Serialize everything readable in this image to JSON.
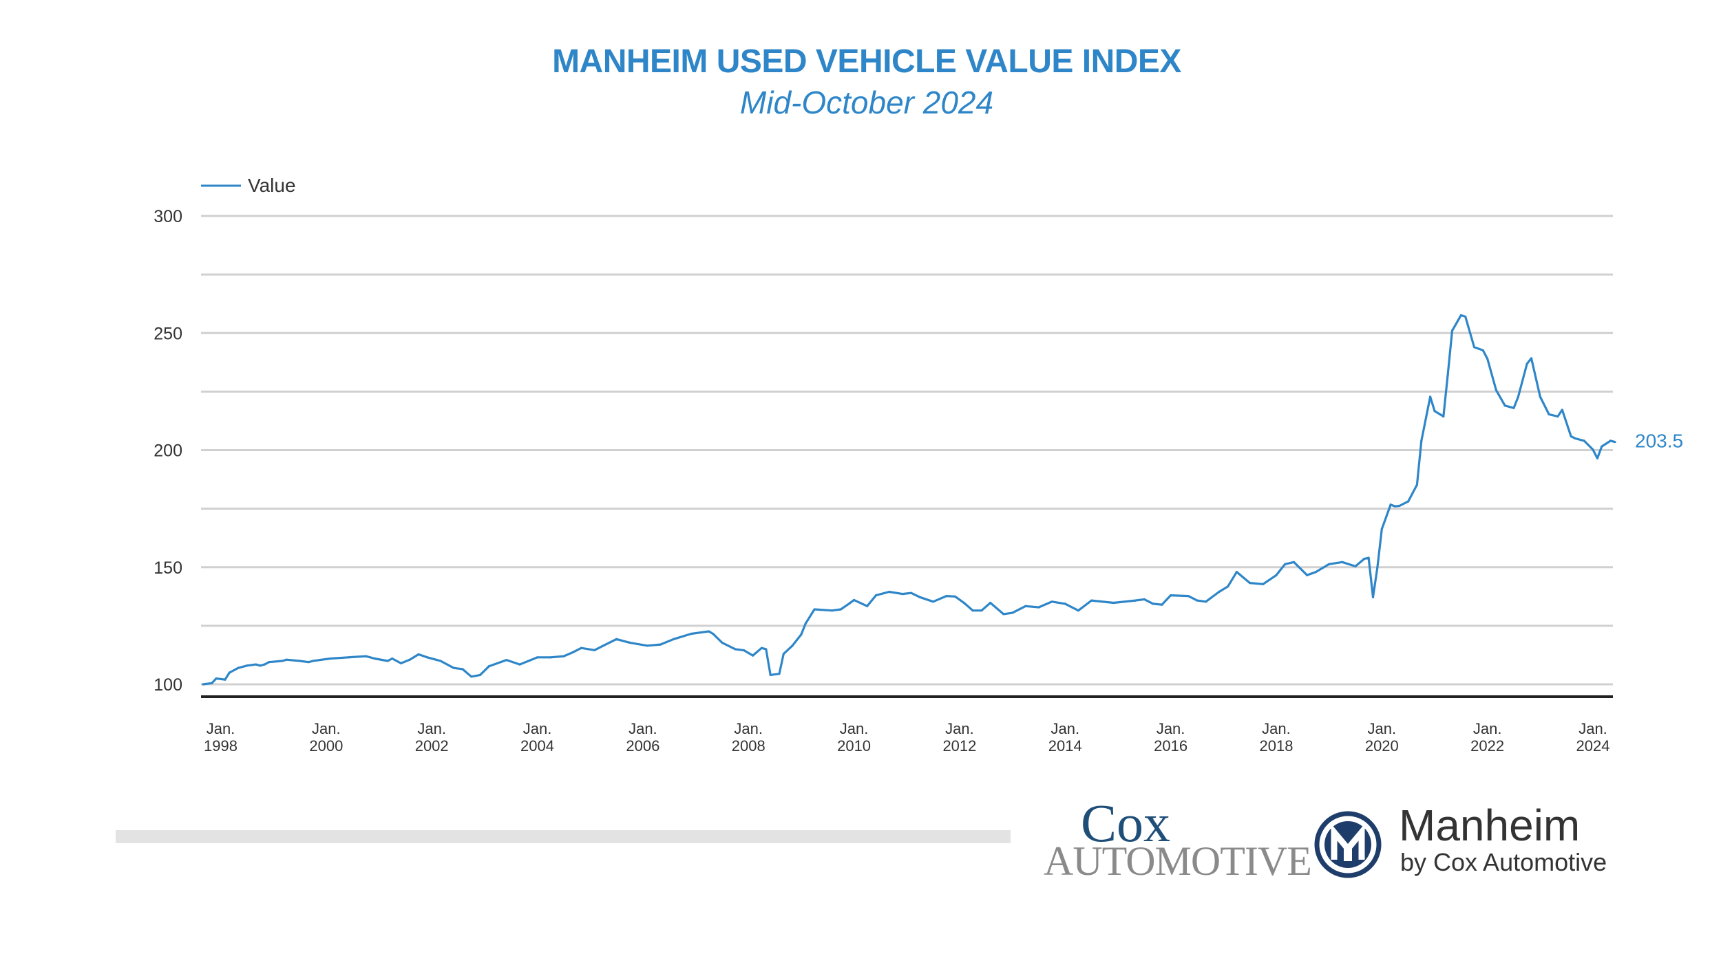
{
  "chart_data": {
    "type": "line",
    "title": "MANHEIM USED VEHICLE VALUE INDEX",
    "subtitle": "Mid-October 2024",
    "legend": {
      "position": "top-left",
      "entries": [
        "Value"
      ]
    },
    "ylim": [
      100,
      300
    ],
    "yticks": [
      100,
      150,
      200,
      250,
      300
    ],
    "grid": true,
    "xtick_labels": [
      {
        "date": "1998-01",
        "line1": "Jan.",
        "line2": "1998"
      },
      {
        "date": "2000-01",
        "line1": "Jan.",
        "line2": "2000"
      },
      {
        "date": "2002-01",
        "line1": "Jan.",
        "line2": "2002"
      },
      {
        "date": "2004-01",
        "line1": "Jan.",
        "line2": "2004"
      },
      {
        "date": "2006-01",
        "line1": "Jan.",
        "line2": "2006"
      },
      {
        "date": "2008-01",
        "line1": "Jan.",
        "line2": "2008"
      },
      {
        "date": "2010-01",
        "line1": "Jan.",
        "line2": "2010"
      },
      {
        "date": "2012-01",
        "line1": "Jan.",
        "line2": "2012"
      },
      {
        "date": "2014-01",
        "line1": "Jan.",
        "line2": "2014"
      },
      {
        "date": "2016-01",
        "line1": "Jan.",
        "line2": "2016"
      },
      {
        "date": "2018-01",
        "line1": "Jan.",
        "line2": "2018"
      },
      {
        "date": "2020-01",
        "line1": "Jan.",
        "line2": "2020"
      },
      {
        "date": "2022-01",
        "line1": "Jan.",
        "line2": "2022"
      },
      {
        "date": "2024-01",
        "line1": "Jan.",
        "line2": "2024"
      }
    ],
    "last_value_label": "203.5",
    "series": [
      {
        "name": "Value",
        "color": "#2e86c8",
        "points": [
          [
            "1997-09",
            100
          ],
          [
            "1997-11",
            100.5
          ],
          [
            "1997-12",
            102.5
          ],
          [
            "1998-02",
            102
          ],
          [
            "1998-03",
            105
          ],
          [
            "1998-05",
            107
          ],
          [
            "1998-07",
            108
          ],
          [
            "1998-09",
            108.5
          ],
          [
            "1998-10",
            108
          ],
          [
            "1998-11",
            108.5
          ],
          [
            "1998-12",
            109.5
          ],
          [
            "1999-03",
            110
          ],
          [
            "1999-04",
            110.5
          ],
          [
            "1999-07",
            110
          ],
          [
            "1999-09",
            109.5
          ],
          [
            "1999-10",
            110
          ],
          [
            "1999-12",
            110.5
          ],
          [
            "2000-02",
            111
          ],
          [
            "2000-06",
            111.5
          ],
          [
            "2000-10",
            112
          ],
          [
            "2000-12",
            111
          ],
          [
            "2001-03",
            110
          ],
          [
            "2001-04",
            111
          ],
          [
            "2001-06",
            109
          ],
          [
            "2001-08",
            110.5
          ],
          [
            "2001-10",
            112.8
          ],
          [
            "2001-12",
            111.5
          ],
          [
            "2002-03",
            110
          ],
          [
            "2002-06",
            107
          ],
          [
            "2002-08",
            106.5
          ],
          [
            "2002-10",
            103.3
          ],
          [
            "2002-12",
            104
          ],
          [
            "2003-02",
            107.7
          ],
          [
            "2003-06",
            110.4
          ],
          [
            "2003-09",
            108.5
          ],
          [
            "2003-11",
            110
          ],
          [
            "2004-01",
            111.5
          ],
          [
            "2004-04",
            111.5
          ],
          [
            "2004-07",
            112
          ],
          [
            "2004-09",
            113.6
          ],
          [
            "2004-11",
            115.5
          ],
          [
            "2005-02",
            114.6
          ],
          [
            "2005-04",
            116.5
          ],
          [
            "2005-07",
            119.3
          ],
          [
            "2005-10",
            117.8
          ],
          [
            "2006-02",
            116.5
          ],
          [
            "2006-05",
            117
          ],
          [
            "2006-08",
            119.3
          ],
          [
            "2006-12",
            121.6
          ],
          [
            "2007-04",
            122.6
          ],
          [
            "2007-05",
            121.5
          ],
          [
            "2007-07",
            117.8
          ],
          [
            "2007-10",
            115
          ],
          [
            "2007-12",
            114.5
          ],
          [
            "2008-02",
            112.3
          ],
          [
            "2008-04",
            115.5
          ],
          [
            "2008-05",
            115
          ],
          [
            "2008-06",
            104
          ],
          [
            "2008-08",
            104.5
          ],
          [
            "2008-09",
            113
          ],
          [
            "2008-11",
            116.5
          ],
          [
            "2009-01",
            121.3
          ],
          [
            "2009-02",
            126
          ],
          [
            "2009-04",
            132
          ],
          [
            "2009-08",
            131.5
          ],
          [
            "2009-10",
            132
          ],
          [
            "2009-12",
            134.6
          ],
          [
            "2010-01",
            136
          ],
          [
            "2010-04",
            133.4
          ],
          [
            "2010-06",
            138
          ],
          [
            "2010-09",
            139.5
          ],
          [
            "2010-12",
            138.6
          ],
          [
            "2011-02",
            139
          ],
          [
            "2011-04",
            137.2
          ],
          [
            "2011-07",
            135.3
          ],
          [
            "2011-10",
            137.7
          ],
          [
            "2011-12",
            137.5
          ],
          [
            "2012-02",
            134.8
          ],
          [
            "2012-04",
            131.5
          ],
          [
            "2012-06",
            131.5
          ],
          [
            "2012-08",
            134.8
          ],
          [
            "2012-11",
            130
          ],
          [
            "2013-01",
            130.5
          ],
          [
            "2013-04",
            133.4
          ],
          [
            "2013-07",
            132.9
          ],
          [
            "2013-10",
            135.3
          ],
          [
            "2014-01",
            134.4
          ],
          [
            "2014-04",
            131.5
          ],
          [
            "2014-07",
            135.8
          ],
          [
            "2014-12",
            134.8
          ],
          [
            "2015-05",
            135.8
          ],
          [
            "2015-07",
            136.3
          ],
          [
            "2015-09",
            134.4
          ],
          [
            "2015-11",
            134
          ],
          [
            "2016-01",
            138
          ],
          [
            "2016-05",
            137.7
          ],
          [
            "2016-07",
            135.8
          ],
          [
            "2016-09",
            135.3
          ],
          [
            "2016-12",
            139.5
          ],
          [
            "2017-02",
            141.8
          ],
          [
            "2017-04",
            148
          ],
          [
            "2017-07",
            143.3
          ],
          [
            "2017-10",
            142.8
          ],
          [
            "2018-01",
            146.6
          ],
          [
            "2018-03",
            151.3
          ],
          [
            "2018-05",
            152.2
          ],
          [
            "2018-08",
            146.6
          ],
          [
            "2018-10",
            148
          ],
          [
            "2019-01",
            151.3
          ],
          [
            "2019-04",
            152.2
          ],
          [
            "2019-07",
            150.4
          ],
          [
            "2019-09",
            153.6
          ],
          [
            "2019-10",
            154
          ],
          [
            "2019-11",
            137.2
          ],
          [
            "2019-12",
            150
          ],
          [
            "2020-01",
            166.3
          ],
          [
            "2020-03",
            176.7
          ],
          [
            "2020-04",
            176
          ],
          [
            "2020-05",
            176.2
          ],
          [
            "2020-07",
            178.1
          ],
          [
            "2020-09",
            185.2
          ],
          [
            "2020-10",
            204
          ],
          [
            "2020-12",
            222.8
          ],
          [
            "2021-01",
            216.7
          ],
          [
            "2021-03",
            214.4
          ],
          [
            "2021-04",
            232.2
          ],
          [
            "2021-05",
            251
          ],
          [
            "2021-07",
            257.6
          ],
          [
            "2021-08",
            257
          ],
          [
            "2021-10",
            244
          ],
          [
            "2021-12",
            242.6
          ],
          [
            "2022-01",
            239
          ],
          [
            "2022-03",
            225.6
          ],
          [
            "2022-05",
            219
          ],
          [
            "2022-07",
            218
          ],
          [
            "2022-08",
            222.8
          ],
          [
            "2022-10",
            236.9
          ],
          [
            "2022-11",
            239.2
          ],
          [
            "2023-01",
            222.8
          ],
          [
            "2023-03",
            215.3
          ],
          [
            "2023-05",
            214.4
          ],
          [
            "2023-06",
            217.2
          ],
          [
            "2023-08",
            205.9
          ],
          [
            "2023-09",
            205
          ],
          [
            "2023-11",
            204
          ],
          [
            "2024-01",
            200.2
          ],
          [
            "2024-02",
            196.5
          ],
          [
            "2024-03",
            201.6
          ],
          [
            "2024-05",
            204
          ],
          [
            "2024-06",
            203.5
          ]
        ]
      }
    ]
  },
  "logos": {
    "cox_line1": "Cox",
    "cox_line2": "Automotive",
    "manheim_name": "Manheim",
    "manheim_tagline": "by Cox Automotive",
    "manheim_colors": {
      "ring": "#1f3d6b",
      "text": "#333333"
    }
  }
}
